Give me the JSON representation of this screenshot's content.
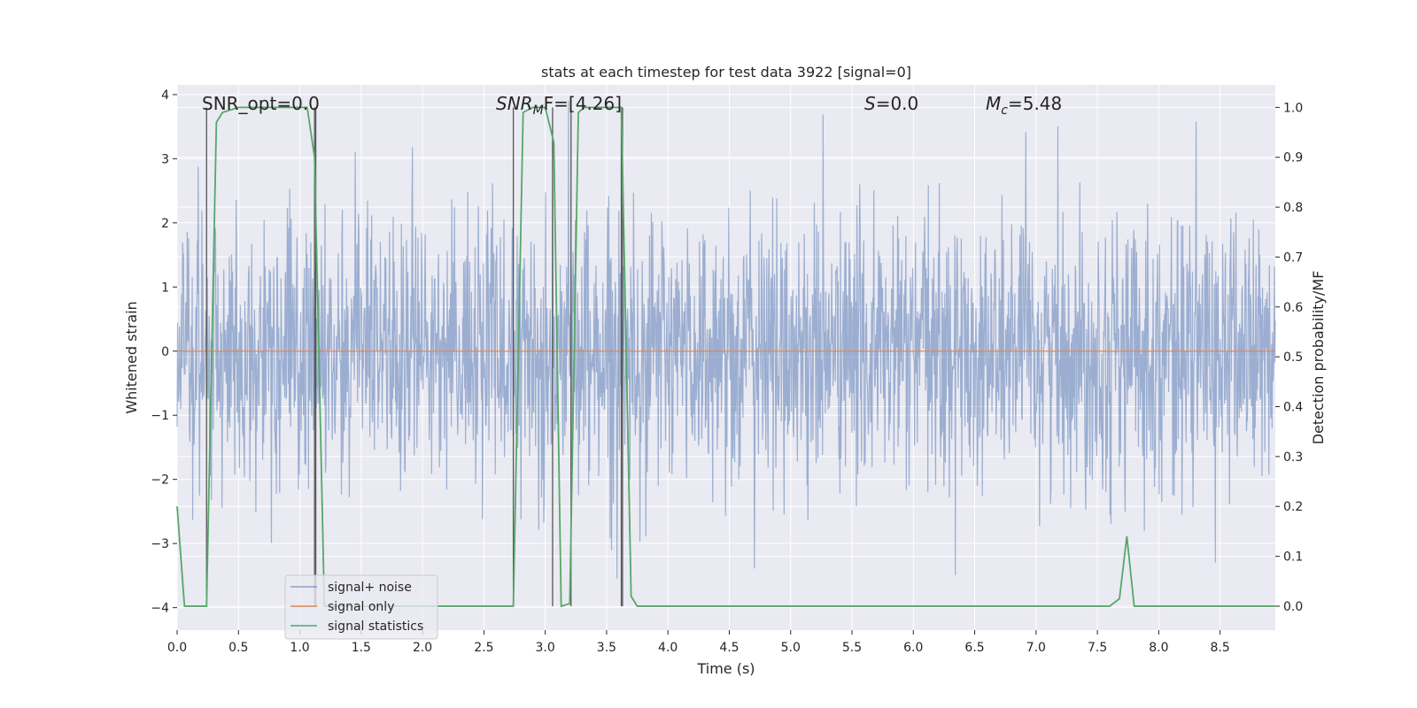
{
  "chart_data": {
    "type": "line",
    "title": "stats at each timestep for test data 3922 [signal=0]",
    "xlabel": "Time (s)",
    "ylabel": "Whitened strain",
    "y2label": "Detection probability/MF",
    "xlim": [
      0.0,
      8.95
    ],
    "ylim": [
      -4.35,
      4.15
    ],
    "y2lim": [
      -0.048,
      1.045
    ],
    "xticks": [
      0.0,
      0.5,
      1.0,
      1.5,
      2.0,
      2.5,
      3.0,
      3.5,
      4.0,
      4.5,
      5.0,
      5.5,
      6.0,
      6.5,
      7.0,
      7.5,
      8.0,
      8.5
    ],
    "xtick_labels": [
      "0.0",
      "0.5",
      "1.0",
      "1.5",
      "2.0",
      "2.5",
      "3.0",
      "3.5",
      "4.0",
      "4.5",
      "5.0",
      "5.5",
      "6.0",
      "6.5",
      "7.0",
      "7.5",
      "8.0",
      "8.5"
    ],
    "yticks": [
      -4,
      -3,
      -2,
      -1,
      0,
      1,
      2,
      3,
      4
    ],
    "ytick_labels": [
      "−4",
      "−3",
      "−2",
      "−1",
      "0",
      "1",
      "2",
      "3",
      "4"
    ],
    "y2ticks": [
      0.0,
      0.1,
      0.2,
      0.3,
      0.4,
      0.5,
      0.6,
      0.7,
      0.8,
      0.9,
      1.0
    ],
    "y2tick_labels": [
      "0.0",
      "0.1",
      "0.2",
      "0.3",
      "0.4",
      "0.5",
      "0.6",
      "0.7",
      "0.8",
      "0.9",
      "1.0"
    ],
    "grid": true,
    "legend_position": "lower-left",
    "annotations": {
      "snr_opt": "SNR_opt=0.0",
      "snr_mf_base": "SNR",
      "snr_mf_sub": "M",
      "snr_mf_tail": "F=[4.26]",
      "s_var": "S",
      "s_val": "=0.0",
      "mc_var": "M",
      "mc_sub": "c",
      "mc_val": "=5.48"
    },
    "series": [
      {
        "name": "signal+ noise",
        "color": "#4c72b0",
        "axis": "left",
        "description": "whitened noise, roughly Gaussian, peaks between about -3.6 and 3.9",
        "sigma": 1.05,
        "n_samples": 2400
      },
      {
        "name": "signal only",
        "color": "#dd8452",
        "axis": "left",
        "x": [
          0.0,
          8.95
        ],
        "y": [
          0.0,
          0.0
        ]
      },
      {
        "name": "signal statistics",
        "color": "#55a868",
        "axis": "right",
        "x": [
          0.0,
          0.06,
          0.24,
          0.32,
          0.37,
          0.5,
          1.06,
          1.12,
          1.2,
          1.7,
          2.74,
          2.82,
          2.9,
          3.0,
          3.07,
          3.13,
          3.2,
          3.27,
          3.32,
          3.62,
          3.7,
          3.75,
          4.0,
          7.6,
          7.68,
          7.74,
          7.8,
          8.0,
          8.95
        ],
        "y": [
          0.2,
          0.0,
          0.0,
          0.97,
          0.99,
          1.0,
          1.0,
          0.9,
          0.0,
          0.0,
          0.0,
          0.99,
          1.0,
          1.0,
          0.93,
          0.0,
          0.005,
          0.99,
          1.0,
          1.0,
          0.02,
          0.0,
          0.0,
          0.0,
          0.015,
          0.14,
          0.0,
          0.0,
          0.0
        ]
      }
    ],
    "vertical_markers": {
      "color": "#555555",
      "x": [
        0.24,
        1.12,
        1.13,
        2.74,
        3.06,
        3.21,
        3.62,
        3.63
      ],
      "y_from": 0.0,
      "y_to": 1.0
    }
  }
}
